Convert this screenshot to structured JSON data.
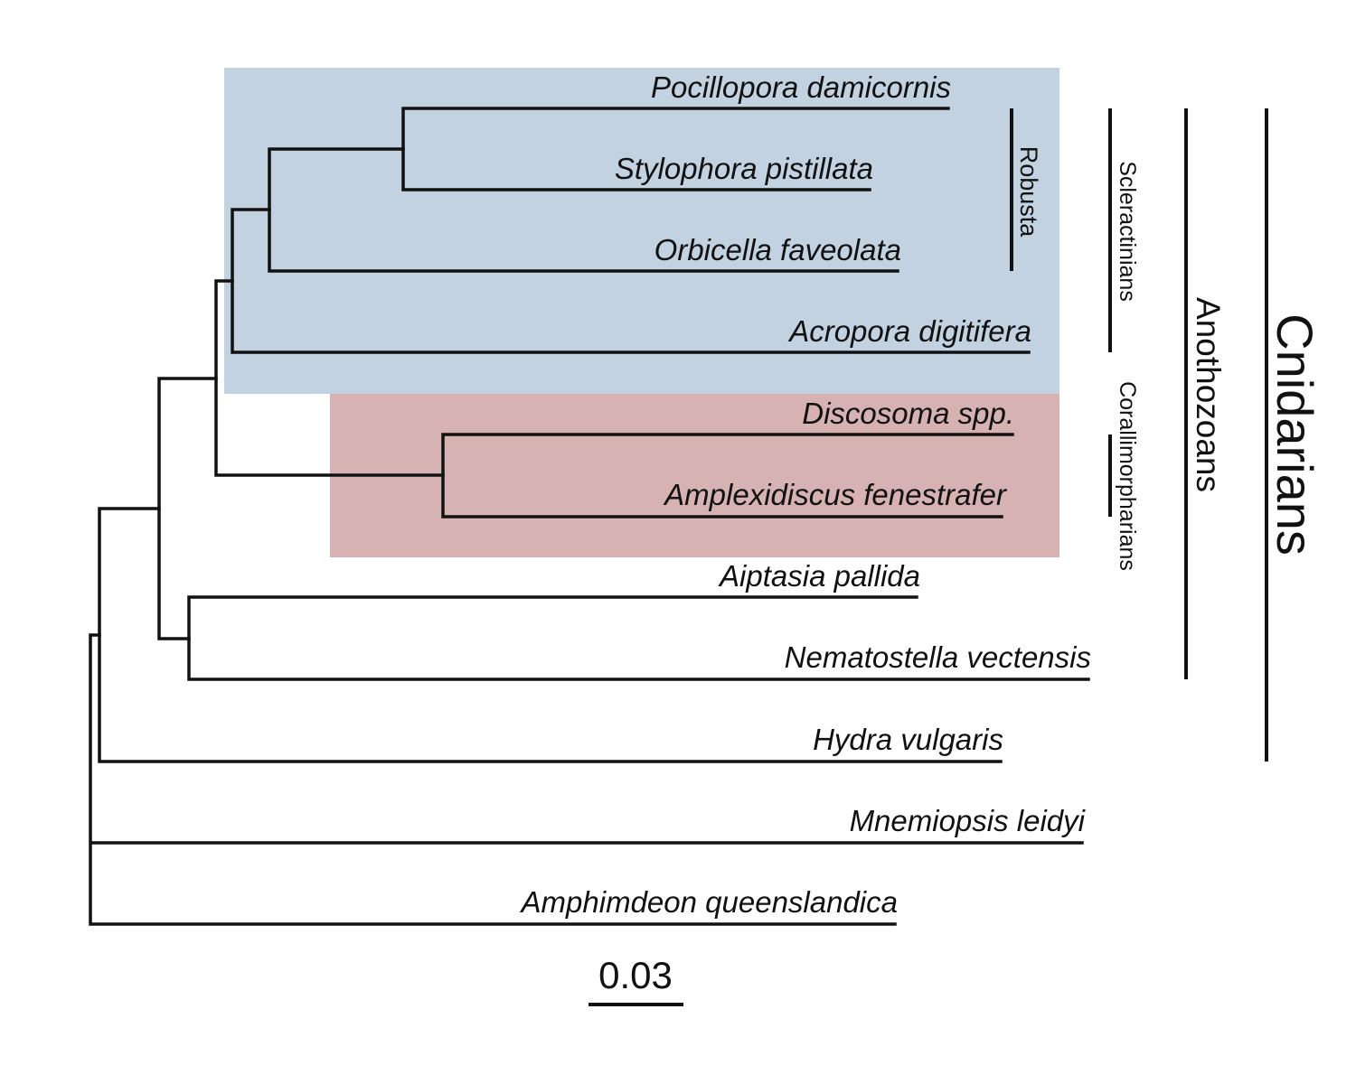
{
  "colors": {
    "branch": "#111111",
    "scleractinian_highlight": "#c2d2e1",
    "corallimorpharian_highlight": "#d6b2b2"
  },
  "taxa": [
    {
      "id": "pocillopora",
      "label": "Pocillopora damicornis"
    },
    {
      "id": "stylophora",
      "label": "Stylophora pistillata"
    },
    {
      "id": "orbicella",
      "label": "Orbicella faveolata"
    },
    {
      "id": "acropora",
      "label": "Acropora digitifera"
    },
    {
      "id": "discosoma",
      "label": "Discosoma spp."
    },
    {
      "id": "amplexidiscus",
      "label": "Amplexidiscus fenestrafer"
    },
    {
      "id": "aiptasia",
      "label": "Aiptasia pallida"
    },
    {
      "id": "nematostella",
      "label": "Nematostella vectensis"
    },
    {
      "id": "hydra",
      "label": "Hydra vulgaris"
    },
    {
      "id": "mnemiopsis",
      "label": "Mnemiopsis leidyi"
    },
    {
      "id": "amphimedon",
      "label": "Amphimdeon queenslandica"
    }
  ],
  "clades": {
    "robusta": "Robusta",
    "scleractinians": "Scleractinians",
    "corallimorpharians": "Corallimorpharians",
    "anthozoans": "Anothozoans",
    "cnidarians": "Cnidarians"
  },
  "scale_bar": {
    "label": "0.03",
    "value": 0.03
  }
}
